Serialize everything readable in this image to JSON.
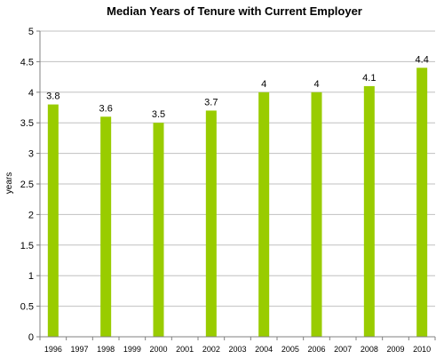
{
  "chart_data": {
    "type": "bar",
    "title": "Median Years of Tenure with Current Employer",
    "xlabel": "",
    "ylabel": "years",
    "ylim": [
      0,
      5
    ],
    "yticks": [
      "0",
      "0.5",
      "1",
      "1.5",
      "2",
      "2.5",
      "3",
      "3.5",
      "4",
      "4.5",
      "5"
    ],
    "grid": true,
    "legend": "none",
    "bar_color": "#99cc00",
    "grid_color": "#c0c0c0",
    "categories": [
      "1996",
      "1997",
      "1998",
      "1999",
      "2000",
      "2001",
      "2002",
      "2003",
      "2004",
      "2005",
      "2006",
      "2007",
      "2008",
      "2009",
      "2010"
    ],
    "values": [
      3.8,
      null,
      3.6,
      null,
      3.5,
      null,
      3.7,
      null,
      4,
      null,
      4,
      null,
      4.1,
      null,
      4.4
    ],
    "data_labels": [
      "3.8",
      "",
      "3.6",
      "",
      "3.5",
      "",
      "3.7",
      "",
      "4",
      "",
      "4",
      "",
      "4.1",
      "",
      "4.4"
    ]
  }
}
